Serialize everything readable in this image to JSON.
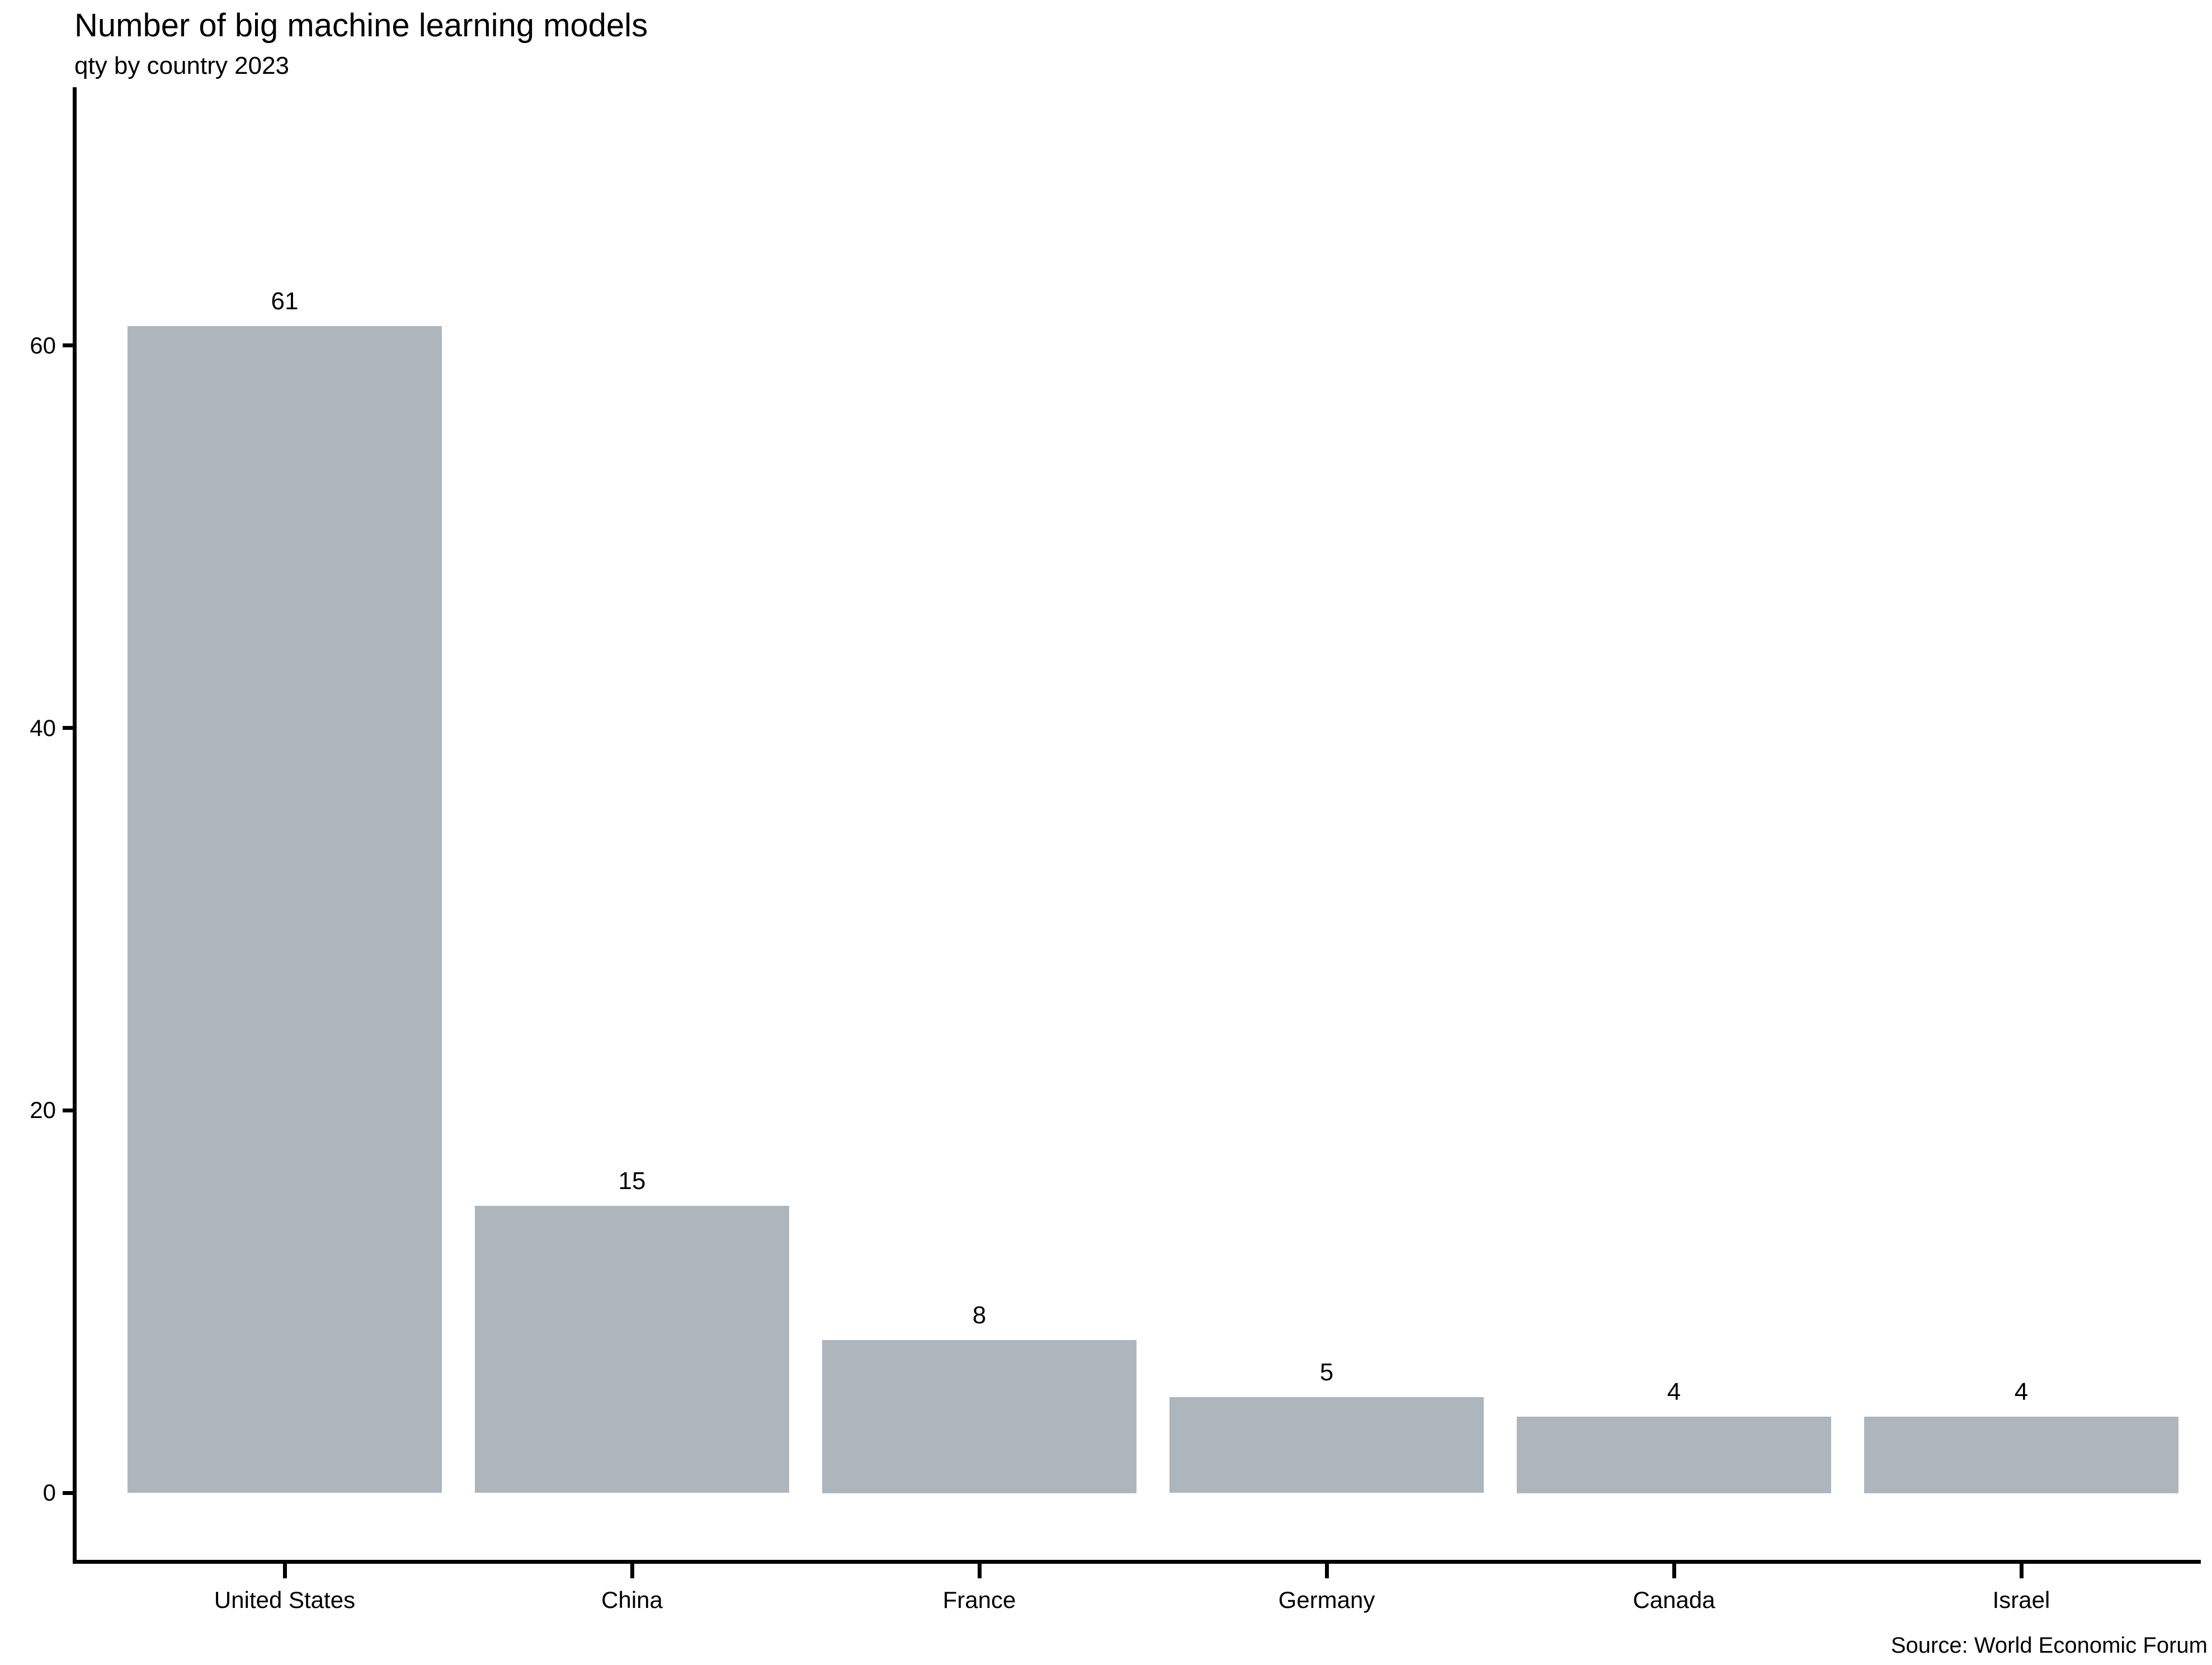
{
  "chart_data": {
    "type": "bar",
    "title": "Number of big machine learning models",
    "subtitle": "qty by country 2023",
    "source": "Source: World Economic Forum",
    "categories": [
      "United States",
      "China",
      "France",
      "Germany",
      "Canada",
      "Israel"
    ],
    "values": [
      61,
      15,
      8,
      5,
      4,
      4
    ],
    "bar_labels": [
      "61",
      "15",
      "8",
      "5",
      "4",
      "4"
    ],
    "xlabel": "",
    "ylabel": "",
    "ytick_values": [
      0,
      20,
      40,
      60
    ],
    "ytick_labels": [
      "0",
      "20",
      "40",
      "60"
    ],
    "ylim": [
      -3.5,
      73.5
    ],
    "grid": false,
    "legend": false,
    "colors": {
      "bar": "#ADB5BD",
      "axis": "#000000",
      "text": "#000000",
      "background": "#FFFFFF"
    }
  }
}
